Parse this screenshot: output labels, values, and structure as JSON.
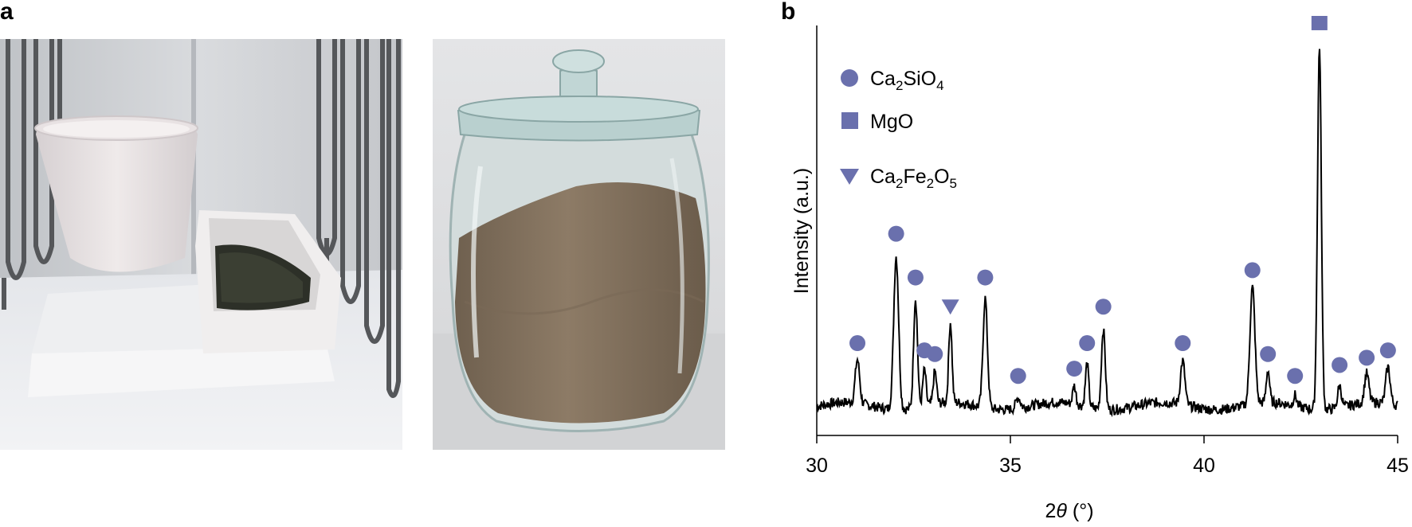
{
  "figure": {
    "panel_a_label": "a",
    "panel_b_label": "b",
    "photo_a_description_icon": "furnace-crucible-photo",
    "photo_b_description_icon": "glass-jar-powder-photo"
  },
  "legend": {
    "items": [
      {
        "marker": "circle",
        "label": "Ca2SiO4",
        "base": "Ca",
        "sub1": "2",
        "mid": "SiO",
        "sub2": "4",
        "color": "#6a70ad"
      },
      {
        "marker": "square",
        "label": "MgO",
        "text": "MgO",
        "color": "#6a70ad"
      },
      {
        "marker": "triangle",
        "label": "Ca2Fe2O5",
        "color": "#6a70ad"
      }
    ]
  },
  "chart_data": {
    "type": "line",
    "ylabel": "Intensity (a.u.)",
    "xlabel_prefix": "2",
    "xlabel_theta": "θ",
    "xlabel_unit": "(°)",
    "xlim": [
      30,
      45
    ],
    "xticks": [
      "30",
      "35",
      "40",
      "45"
    ],
    "grid": false,
    "legend_position": "top-left",
    "marker_color": "#6a70ad",
    "line_color": "#000000",
    "peaks": [
      {
        "x": 31.05,
        "h": 0.12,
        "w": 0.08,
        "marker": "circle"
      },
      {
        "x": 32.05,
        "h": 0.42,
        "w": 0.09,
        "marker": "circle"
      },
      {
        "x": 32.55,
        "h": 0.3,
        "w": 0.07,
        "marker": "circle"
      },
      {
        "x": 32.78,
        "h": 0.1,
        "w": 0.06,
        "marker": "circle"
      },
      {
        "x": 33.05,
        "h": 0.09,
        "w": 0.06,
        "marker": "circle"
      },
      {
        "x": 33.45,
        "h": 0.22,
        "w": 0.06,
        "marker": "triangle"
      },
      {
        "x": 34.35,
        "h": 0.3,
        "w": 0.08,
        "marker": "circle"
      },
      {
        "x": 35.2,
        "h": 0.03,
        "w": 0.08,
        "marker": "circle"
      },
      {
        "x": 36.65,
        "h": 0.05,
        "w": 0.06,
        "marker": "circle"
      },
      {
        "x": 36.98,
        "h": 0.12,
        "w": 0.06,
        "marker": "circle"
      },
      {
        "x": 37.4,
        "h": 0.22,
        "w": 0.07,
        "marker": "circle"
      },
      {
        "x": 39.45,
        "h": 0.12,
        "w": 0.08,
        "marker": "circle"
      },
      {
        "x": 41.25,
        "h": 0.32,
        "w": 0.09,
        "marker": "circle"
      },
      {
        "x": 41.65,
        "h": 0.09,
        "w": 0.06,
        "marker": "circle"
      },
      {
        "x": 42.35,
        "h": 0.03,
        "w": 0.06,
        "marker": "circle"
      },
      {
        "x": 42.98,
        "h": 1.0,
        "w": 0.07,
        "marker": "square"
      },
      {
        "x": 43.5,
        "h": 0.06,
        "w": 0.07,
        "marker": "circle"
      },
      {
        "x": 44.2,
        "h": 0.08,
        "w": 0.08,
        "marker": "circle"
      },
      {
        "x": 44.75,
        "h": 0.1,
        "w": 0.08,
        "marker": "circle"
      }
    ]
  }
}
